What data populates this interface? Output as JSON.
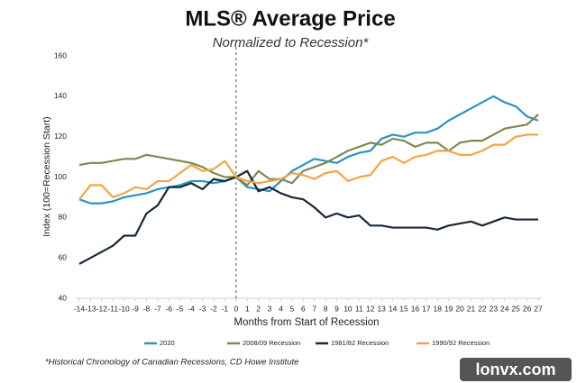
{
  "chart_data": {
    "type": "line",
    "title": "MLS® Average Price",
    "subtitle": "Normalized to Recession*",
    "x_label": "Months from Start of Recession",
    "y_label": "Index (100=Recession Start)",
    "footnote": "*Historical Chronology of Canadian Recessions, CD Howe Institute",
    "watermark": "lonvx.com",
    "x": [
      -14,
      -13,
      -12,
      -11,
      -10,
      -9,
      -8,
      -7,
      -6,
      -5,
      -4,
      -3,
      -2,
      -1,
      0,
      1,
      2,
      3,
      4,
      5,
      6,
      7,
      8,
      9,
      10,
      11,
      12,
      13,
      14,
      15,
      16,
      17,
      18,
      19,
      20,
      21,
      22,
      23,
      24,
      25,
      26,
      27
    ],
    "xlim": [
      -14,
      27
    ],
    "xticks": [
      -14,
      -13,
      -12,
      -11,
      -10,
      -9,
      -8,
      -7,
      -6,
      -5,
      -4,
      -3,
      -2,
      -1,
      0,
      1,
      2,
      3,
      4,
      5,
      6,
      7,
      8,
      9,
      10,
      11,
      12,
      13,
      14,
      15,
      16,
      17,
      18,
      19,
      20,
      21,
      22,
      23,
      24,
      25,
      26,
      27
    ],
    "ylim": [
      40,
      160
    ],
    "yticks": [
      40,
      60,
      80,
      100,
      120,
      140,
      160
    ],
    "vline_x": 0,
    "legend": "bottom",
    "series": [
      {
        "name": "2020",
        "color": "#2a93c4",
        "values": [
          89,
          87,
          87,
          88,
          90,
          91,
          92,
          94,
          95,
          96,
          98,
          98,
          97,
          98,
          100,
          95,
          94,
          93,
          98,
          103,
          106,
          109,
          108,
          107,
          110,
          112,
          113,
          119,
          121,
          120,
          122,
          122,
          124,
          128,
          131,
          134,
          137,
          140,
          137,
          135,
          130,
          128
        ]
      },
      {
        "name": "2008/09 Recession",
        "color": "#7d8a4c",
        "values": [
          106,
          107,
          107,
          108,
          109,
          109,
          111,
          110,
          109,
          108,
          107,
          105,
          102,
          100,
          100,
          96,
          103,
          99,
          99,
          97,
          103,
          105,
          107,
          110,
          113,
          115,
          117,
          116,
          119,
          118,
          115,
          117,
          117,
          113,
          117,
          118,
          118,
          121,
          124,
          125,
          126,
          131
        ]
      },
      {
        "name": "1981/82 Recession",
        "color": "#17283a",
        "values": [
          57,
          60,
          63,
          66,
          71,
          71,
          82,
          86,
          95,
          95,
          97,
          94,
          99,
          98,
          100,
          103,
          93,
          95,
          92,
          90,
          89,
          85,
          80,
          82,
          80,
          81,
          76,
          76,
          75,
          75,
          75,
          75,
          74,
          76,
          77,
          78,
          76,
          78,
          80,
          79,
          79,
          79
        ]
      },
      {
        "name": "1990/92 Recession",
        "color": "#f4a444",
        "values": [
          89,
          96,
          96,
          90,
          92,
          95,
          94,
          98,
          98,
          102,
          106,
          103,
          104,
          108,
          100,
          98,
          97,
          98,
          99,
          102,
          101,
          99,
          102,
          103,
          98,
          100,
          101,
          108,
          110,
          107,
          110,
          111,
          113,
          113,
          111,
          111,
          113,
          116,
          116,
          120,
          121,
          121
        ]
      }
    ]
  }
}
